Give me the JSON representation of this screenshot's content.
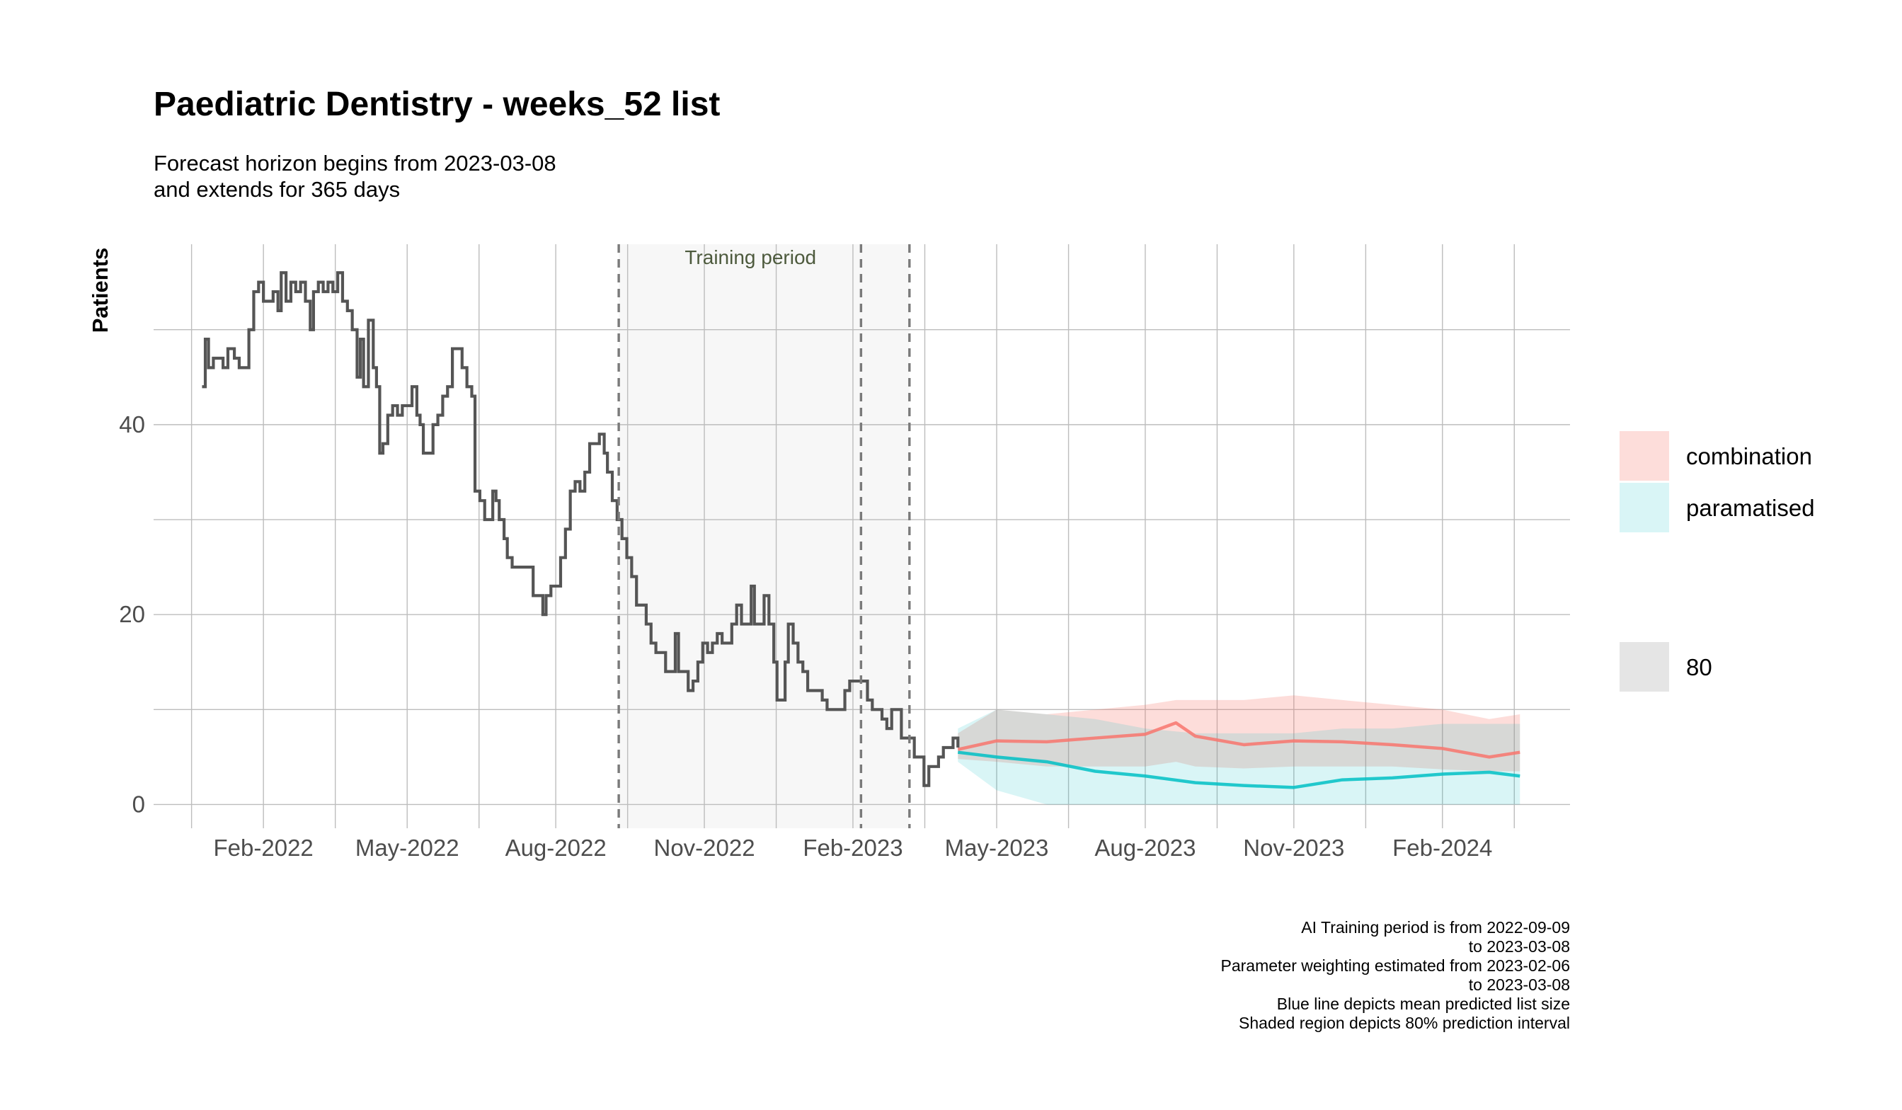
{
  "chart_data": {
    "type": "line",
    "title": "Paediatric Dentistry - weeks_52 list",
    "subtitle_lines": [
      "Forecast horizon begins from 2023-03-08",
      "and extends for 365 days"
    ],
    "xlabel": "",
    "ylabel": "Patients",
    "x_type": "date",
    "xlim": [
      "2021-11-25",
      "2024-04-20"
    ],
    "ylim": [
      -2.5,
      59
    ],
    "x_ticks": [
      "2022-02-01",
      "2022-05-01",
      "2022-08-01",
      "2022-11-01",
      "2023-02-01",
      "2023-05-01",
      "2023-08-01",
      "2023-11-01",
      "2024-02-01"
    ],
    "x_tick_labels": [
      "Feb-2022",
      "May-2022",
      "Aug-2022",
      "Nov-2022",
      "Feb-2023",
      "May-2023",
      "Aug-2023",
      "Nov-2023",
      "Feb-2024"
    ],
    "y_ticks": [
      0,
      20,
      40
    ],
    "y_tick_labels": [
      "0",
      "20",
      "40"
    ],
    "grid": true,
    "training_period": {
      "label": "Training period",
      "start": "2022-09-09",
      "end": "2023-03-08",
      "parameter_weighting_start": "2023-02-06"
    },
    "observed": {
      "color": "#555555",
      "points": [
        [
          "2021-12-25",
          44
        ],
        [
          "2021-12-27",
          49
        ],
        [
          "2021-12-29",
          46
        ],
        [
          "2022-01-01",
          47
        ],
        [
          "2022-01-04",
          47
        ],
        [
          "2022-01-07",
          46
        ],
        [
          "2022-01-10",
          48
        ],
        [
          "2022-01-14",
          47
        ],
        [
          "2022-01-17",
          46
        ],
        [
          "2022-01-20",
          46
        ],
        [
          "2022-01-23",
          50
        ],
        [
          "2022-01-26",
          54
        ],
        [
          "2022-01-29",
          55
        ],
        [
          "2022-02-01",
          53
        ],
        [
          "2022-02-04",
          53
        ],
        [
          "2022-02-07",
          54
        ],
        [
          "2022-02-10",
          52
        ],
        [
          "2022-02-12",
          56
        ],
        [
          "2022-02-15",
          53
        ],
        [
          "2022-02-18",
          55
        ],
        [
          "2022-02-21",
          54
        ],
        [
          "2022-02-24",
          55
        ],
        [
          "2022-02-27",
          53
        ],
        [
          "2022-03-02",
          50
        ],
        [
          "2022-03-04",
          54
        ],
        [
          "2022-03-07",
          55
        ],
        [
          "2022-03-10",
          54
        ],
        [
          "2022-03-13",
          55
        ],
        [
          "2022-03-16",
          54
        ],
        [
          "2022-03-19",
          56
        ],
        [
          "2022-03-22",
          53
        ],
        [
          "2022-03-25",
          52
        ],
        [
          "2022-03-28",
          50
        ],
        [
          "2022-03-31",
          45
        ],
        [
          "2022-04-02",
          49
        ],
        [
          "2022-04-04",
          44
        ],
        [
          "2022-04-07",
          51
        ],
        [
          "2022-04-10",
          46
        ],
        [
          "2022-04-12",
          44
        ],
        [
          "2022-04-14",
          37
        ],
        [
          "2022-04-16",
          38
        ],
        [
          "2022-04-19",
          41
        ],
        [
          "2022-04-22",
          42
        ],
        [
          "2022-04-25",
          41
        ],
        [
          "2022-04-28",
          42
        ],
        [
          "2022-05-01",
          42
        ],
        [
          "2022-05-04",
          44
        ],
        [
          "2022-05-07",
          41
        ],
        [
          "2022-05-09",
          40
        ],
        [
          "2022-05-11",
          37
        ],
        [
          "2022-05-14",
          37
        ],
        [
          "2022-05-17",
          40
        ],
        [
          "2022-05-20",
          41
        ],
        [
          "2022-05-23",
          43
        ],
        [
          "2022-05-26",
          44
        ],
        [
          "2022-05-29",
          48
        ],
        [
          "2022-06-01",
          48
        ],
        [
          "2022-06-04",
          46
        ],
        [
          "2022-06-07",
          44
        ],
        [
          "2022-06-10",
          43
        ],
        [
          "2022-06-12",
          33
        ],
        [
          "2022-06-15",
          32
        ],
        [
          "2022-06-18",
          30
        ],
        [
          "2022-06-21",
          30
        ],
        [
          "2022-06-23",
          33
        ],
        [
          "2022-06-25",
          32
        ],
        [
          "2022-06-27",
          30
        ],
        [
          "2022-06-30",
          28
        ],
        [
          "2022-07-02",
          26
        ],
        [
          "2022-07-05",
          25
        ],
        [
          "2022-07-09",
          25
        ],
        [
          "2022-07-13",
          25
        ],
        [
          "2022-07-16",
          25
        ],
        [
          "2022-07-18",
          22
        ],
        [
          "2022-07-21",
          22
        ],
        [
          "2022-07-24",
          20
        ],
        [
          "2022-07-26",
          22
        ],
        [
          "2022-07-29",
          23
        ],
        [
          "2022-08-01",
          23
        ],
        [
          "2022-08-04",
          26
        ],
        [
          "2022-08-07",
          29
        ],
        [
          "2022-08-10",
          33
        ],
        [
          "2022-08-13",
          34
        ],
        [
          "2022-08-16",
          33
        ],
        [
          "2022-08-19",
          35
        ],
        [
          "2022-08-22",
          38
        ],
        [
          "2022-08-25",
          38
        ],
        [
          "2022-08-28",
          39
        ],
        [
          "2022-08-31",
          37
        ],
        [
          "2022-09-02",
          35
        ],
        [
          "2022-09-05",
          32
        ],
        [
          "2022-09-08",
          30
        ],
        [
          "2022-09-11",
          28
        ],
        [
          "2022-09-14",
          26
        ],
        [
          "2022-09-17",
          24
        ],
        [
          "2022-09-20",
          21
        ],
        [
          "2022-09-23",
          21
        ],
        [
          "2022-09-26",
          19
        ],
        [
          "2022-09-29",
          17
        ],
        [
          "2022-10-02",
          16
        ],
        [
          "2022-10-05",
          16
        ],
        [
          "2022-10-08",
          14
        ],
        [
          "2022-10-11",
          14
        ],
        [
          "2022-10-14",
          18
        ],
        [
          "2022-10-16",
          14
        ],
        [
          "2022-10-19",
          14
        ],
        [
          "2022-10-22",
          12
        ],
        [
          "2022-10-25",
          13
        ],
        [
          "2022-10-28",
          15
        ],
        [
          "2022-10-31",
          17
        ],
        [
          "2022-11-03",
          16
        ],
        [
          "2022-11-06",
          17
        ],
        [
          "2022-11-09",
          18
        ],
        [
          "2022-11-12",
          17
        ],
        [
          "2022-11-15",
          17
        ],
        [
          "2022-11-18",
          19
        ],
        [
          "2022-11-21",
          21
        ],
        [
          "2022-11-24",
          19
        ],
        [
          "2022-11-27",
          19
        ],
        [
          "2022-11-30",
          23
        ],
        [
          "2022-12-02",
          19
        ],
        [
          "2022-12-05",
          19
        ],
        [
          "2022-12-08",
          22
        ],
        [
          "2022-12-11",
          19
        ],
        [
          "2022-12-14",
          15
        ],
        [
          "2022-12-16",
          11
        ],
        [
          "2022-12-19",
          11
        ],
        [
          "2022-12-21",
          15
        ],
        [
          "2022-12-23",
          19
        ],
        [
          "2022-12-26",
          17
        ],
        [
          "2022-12-29",
          15
        ],
        [
          "2023-01-01",
          14
        ],
        [
          "2023-01-04",
          12
        ],
        [
          "2023-01-07",
          12
        ],
        [
          "2023-01-10",
          12
        ],
        [
          "2023-01-13",
          11
        ],
        [
          "2023-01-16",
          10
        ],
        [
          "2023-01-20",
          10
        ],
        [
          "2023-01-24",
          10
        ],
        [
          "2023-01-27",
          12
        ],
        [
          "2023-01-30",
          13
        ],
        [
          "2023-02-03",
          13
        ],
        [
          "2023-02-07",
          13
        ],
        [
          "2023-02-10",
          11
        ],
        [
          "2023-02-13",
          10
        ],
        [
          "2023-02-16",
          10
        ],
        [
          "2023-02-19",
          9
        ],
        [
          "2023-02-22",
          8
        ],
        [
          "2023-02-25",
          10
        ],
        [
          "2023-02-28",
          10
        ],
        [
          "2023-03-03",
          7
        ],
        [
          "2023-03-06",
          7
        ],
        [
          "2023-03-08",
          7
        ],
        [
          "2023-03-11",
          5
        ],
        [
          "2023-03-14",
          5
        ],
        [
          "2023-03-17",
          2
        ],
        [
          "2023-03-20",
          4
        ],
        [
          "2023-03-23",
          4
        ],
        [
          "2023-03-26",
          5
        ],
        [
          "2023-03-29",
          6
        ],
        [
          "2023-04-01",
          6
        ],
        [
          "2023-04-04",
          7
        ],
        [
          "2023-04-07",
          6
        ]
      ]
    },
    "series": [
      {
        "name": "combination",
        "color": "#f8766d",
        "fill": "#f8766d",
        "x": [
          "2023-04-07",
          "2023-05-01",
          "2023-06-01",
          "2023-07-01",
          "2023-08-01",
          "2023-08-20",
          "2023-09-01",
          "2023-10-01",
          "2023-11-01",
          "2023-12-01",
          "2024-01-01",
          "2024-02-01",
          "2024-03-01",
          "2024-03-20"
        ],
        "mean": [
          5.8,
          6.7,
          6.6,
          7.0,
          7.4,
          8.6,
          7.2,
          6.3,
          6.7,
          6.6,
          6.3,
          5.9,
          5.0,
          5.5
        ],
        "lower": [
          4.8,
          4.5,
          4.0,
          4.0,
          4.0,
          4.5,
          4.0,
          3.8,
          4.0,
          4.0,
          4.0,
          3.7,
          3.5,
          3.5
        ],
        "upper": [
          7.5,
          10.0,
          9.5,
          10.0,
          10.5,
          11.0,
          11.0,
          11.0,
          11.5,
          11.0,
          10.5,
          10.0,
          9.0,
          9.5
        ]
      },
      {
        "name": "paramatised",
        "color": "#00bfc4",
        "fill": "#00bfc4",
        "x": [
          "2023-04-07",
          "2023-05-01",
          "2023-06-01",
          "2023-07-01",
          "2023-08-01",
          "2023-09-01",
          "2023-10-01",
          "2023-11-01",
          "2023-12-01",
          "2024-01-01",
          "2024-02-01",
          "2024-03-01",
          "2024-03-20"
        ],
        "mean": [
          5.5,
          5.0,
          4.5,
          3.5,
          3.0,
          2.3,
          2.0,
          1.8,
          2.6,
          2.8,
          3.2,
          3.4,
          3.0
        ],
        "lower": [
          4.5,
          1.5,
          0.0,
          0.0,
          0.0,
          0.0,
          0.0,
          0.0,
          0.0,
          0.0,
          0.0,
          0.0,
          0.0
        ],
        "upper": [
          8.0,
          10.0,
          9.5,
          9.0,
          8.0,
          7.5,
          7.5,
          7.5,
          8.0,
          8.0,
          8.5,
          8.5,
          8.5
        ]
      }
    ],
    "legend": {
      "placement": "right",
      "entries": [
        {
          "label": "combination",
          "color": "#f8766d"
        },
        {
          "label": "paramatised",
          "color": "#00bfc4"
        }
      ],
      "interval_entry": {
        "label": "80",
        "color": "#e5e5e5"
      }
    },
    "caption_lines": [
      "AI Training period is from 2022-09-09",
      "to 2023-03-08",
      "Parameter weighting estimated from 2023-02-06",
      "to 2023-03-08",
      "Blue line depicts mean predicted list size",
      "Shaded region depicts 80% prediction interval"
    ]
  }
}
